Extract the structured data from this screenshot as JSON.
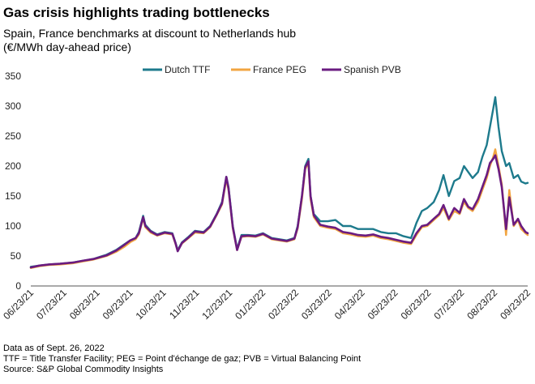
{
  "header": {
    "title": "Gas crisis highlights trading bottlenecks",
    "subtitle_line1": "Spain, France benchmarks at discount to Netherlands hub",
    "subtitle_line2": "(€/MWh day-ahead price)"
  },
  "footer": {
    "note1": "Data as of Sept. 26, 2022",
    "note2": "TTF = Title Transfer Facility; PEG = Point d'échange de gaz; PVB = Virtual Balancing Point",
    "note3": "Source: S&P Global Commodity Insights"
  },
  "chart_data": {
    "type": "line",
    "title": "Gas crisis highlights trading bottlenecks",
    "xlabel": "",
    "ylabel": "",
    "ylim": [
      0,
      350
    ],
    "yticks": [
      0,
      50,
      100,
      150,
      200,
      250,
      300,
      350
    ],
    "xlim": [
      "2021-06-23",
      "2022-09-26"
    ],
    "xtick_labels": [
      "06/23/21",
      "07/23/21",
      "08/23/21",
      "09/23/21",
      "10/23/21",
      "11/23/21",
      "12/23/21",
      "01/23/22",
      "02/23/22",
      "03/23/22",
      "04/23/22",
      "05/23/22",
      "06/23/22",
      "07/23/22",
      "08/23/22",
      "09/23/22"
    ],
    "grid": false,
    "legend_position": "top",
    "colors": {
      "Dutch TTF": "#1d7a8c",
      "France PEG": "#f2a541",
      "Spanish PVB": "#6a1b80"
    },
    "series": [
      {
        "name": "Dutch TTF",
        "points": [
          [
            "2021-06-23",
            32
          ],
          [
            "2021-07-01",
            34
          ],
          [
            "2021-07-10",
            36
          ],
          [
            "2021-07-20",
            37
          ],
          [
            "2021-08-01",
            39
          ],
          [
            "2021-08-10",
            42
          ],
          [
            "2021-08-20",
            45
          ],
          [
            "2021-09-01",
            52
          ],
          [
            "2021-09-10",
            60
          ],
          [
            "2021-09-18",
            70
          ],
          [
            "2021-09-23",
            76
          ],
          [
            "2021-09-28",
            80
          ],
          [
            "2021-10-01",
            90
          ],
          [
            "2021-10-05",
            117
          ],
          [
            "2021-10-07",
            102
          ],
          [
            "2021-10-12",
            92
          ],
          [
            "2021-10-18",
            86
          ],
          [
            "2021-10-25",
            90
          ],
          [
            "2021-11-01",
            88
          ],
          [
            "2021-11-04",
            72
          ],
          [
            "2021-11-06",
            60
          ],
          [
            "2021-11-10",
            73
          ],
          [
            "2021-11-16",
            82
          ],
          [
            "2021-11-22",
            92
          ],
          [
            "2021-11-30",
            90
          ],
          [
            "2021-12-06",
            100
          ],
          [
            "2021-12-12",
            120
          ],
          [
            "2021-12-17",
            140
          ],
          [
            "2021-12-21",
            182
          ],
          [
            "2021-12-23",
            165
          ],
          [
            "2021-12-27",
            100
          ],
          [
            "2021-12-31",
            62
          ],
          [
            "2022-01-04",
            85
          ],
          [
            "2022-01-10",
            85
          ],
          [
            "2022-01-17",
            84
          ],
          [
            "2022-01-24",
            88
          ],
          [
            "2022-02-01",
            80
          ],
          [
            "2022-02-08",
            78
          ],
          [
            "2022-02-15",
            76
          ],
          [
            "2022-02-22",
            80
          ],
          [
            "2022-02-25",
            100
          ],
          [
            "2022-03-01",
            150
          ],
          [
            "2022-03-04",
            200
          ],
          [
            "2022-03-07",
            212
          ],
          [
            "2022-03-09",
            150
          ],
          [
            "2022-03-12",
            120
          ],
          [
            "2022-03-18",
            108
          ],
          [
            "2022-03-25",
            108
          ],
          [
            "2022-04-01",
            110
          ],
          [
            "2022-04-08",
            100
          ],
          [
            "2022-04-15",
            100
          ],
          [
            "2022-04-22",
            95
          ],
          [
            "2022-04-29",
            95
          ],
          [
            "2022-05-06",
            95
          ],
          [
            "2022-05-13",
            90
          ],
          [
            "2022-05-20",
            88
          ],
          [
            "2022-05-27",
            88
          ],
          [
            "2022-06-03",
            83
          ],
          [
            "2022-06-10",
            80
          ],
          [
            "2022-06-15",
            105
          ],
          [
            "2022-06-20",
            125
          ],
          [
            "2022-06-25",
            130
          ],
          [
            "2022-07-01",
            140
          ],
          [
            "2022-07-06",
            160
          ],
          [
            "2022-07-10",
            185
          ],
          [
            "2022-07-15",
            150
          ],
          [
            "2022-07-20",
            175
          ],
          [
            "2022-07-25",
            180
          ],
          [
            "2022-07-29",
            200
          ],
          [
            "2022-08-02",
            190
          ],
          [
            "2022-08-06",
            180
          ],
          [
            "2022-08-11",
            190
          ],
          [
            "2022-08-15",
            215
          ],
          [
            "2022-08-19",
            235
          ],
          [
            "2022-08-22",
            265
          ],
          [
            "2022-08-25",
            295
          ],
          [
            "2022-08-27",
            315
          ],
          [
            "2022-08-30",
            265
          ],
          [
            "2022-09-02",
            225
          ],
          [
            "2022-09-06",
            200
          ],
          [
            "2022-09-09",
            205
          ],
          [
            "2022-09-13",
            180
          ],
          [
            "2022-09-17",
            185
          ],
          [
            "2022-09-20",
            174
          ],
          [
            "2022-09-24",
            171
          ],
          [
            "2022-09-26",
            172
          ]
        ]
      },
      {
        "name": "France PEG",
        "points": [
          [
            "2021-06-23",
            30
          ],
          [
            "2021-07-01",
            33
          ],
          [
            "2021-07-10",
            35
          ],
          [
            "2021-07-20",
            36
          ],
          [
            "2021-08-01",
            38
          ],
          [
            "2021-08-10",
            41
          ],
          [
            "2021-08-20",
            44
          ],
          [
            "2021-09-01",
            50
          ],
          [
            "2021-09-10",
            57
          ],
          [
            "2021-09-18",
            66
          ],
          [
            "2021-09-23",
            73
          ],
          [
            "2021-09-28",
            78
          ],
          [
            "2021-10-01",
            86
          ],
          [
            "2021-10-05",
            113
          ],
          [
            "2021-10-07",
            98
          ],
          [
            "2021-10-12",
            89
          ],
          [
            "2021-10-18",
            84
          ],
          [
            "2021-10-25",
            88
          ],
          [
            "2021-11-01",
            86
          ],
          [
            "2021-11-04",
            70
          ],
          [
            "2021-11-06",
            59
          ],
          [
            "2021-11-10",
            71
          ],
          [
            "2021-11-16",
            80
          ],
          [
            "2021-11-22",
            89
          ],
          [
            "2021-11-30",
            88
          ],
          [
            "2021-12-06",
            98
          ],
          [
            "2021-12-12",
            118
          ],
          [
            "2021-12-17",
            136
          ],
          [
            "2021-12-21",
            178
          ],
          [
            "2021-12-23",
            160
          ],
          [
            "2021-12-27",
            96
          ],
          [
            "2021-12-31",
            60
          ],
          [
            "2022-01-04",
            82
          ],
          [
            "2022-01-10",
            83
          ],
          [
            "2022-01-17",
            82
          ],
          [
            "2022-01-24",
            86
          ],
          [
            "2022-02-01",
            78
          ],
          [
            "2022-02-08",
            76
          ],
          [
            "2022-02-15",
            74
          ],
          [
            "2022-02-22",
            78
          ],
          [
            "2022-02-25",
            96
          ],
          [
            "2022-03-01",
            145
          ],
          [
            "2022-03-04",
            195
          ],
          [
            "2022-03-07",
            205
          ],
          [
            "2022-03-09",
            145
          ],
          [
            "2022-03-12",
            115
          ],
          [
            "2022-03-18",
            100
          ],
          [
            "2022-03-25",
            97
          ],
          [
            "2022-04-01",
            95
          ],
          [
            "2022-04-08",
            88
          ],
          [
            "2022-04-15",
            86
          ],
          [
            "2022-04-22",
            83
          ],
          [
            "2022-04-29",
            82
          ],
          [
            "2022-05-06",
            84
          ],
          [
            "2022-05-13",
            80
          ],
          [
            "2022-05-20",
            78
          ],
          [
            "2022-05-27",
            75
          ],
          [
            "2022-06-03",
            72
          ],
          [
            "2022-06-10",
            70
          ],
          [
            "2022-06-15",
            85
          ],
          [
            "2022-06-20",
            98
          ],
          [
            "2022-06-25",
            100
          ],
          [
            "2022-07-01",
            110
          ],
          [
            "2022-07-06",
            118
          ],
          [
            "2022-07-10",
            130
          ],
          [
            "2022-07-15",
            110
          ],
          [
            "2022-07-20",
            125
          ],
          [
            "2022-07-25",
            120
          ],
          [
            "2022-07-29",
            140
          ],
          [
            "2022-08-02",
            130
          ],
          [
            "2022-08-06",
            125
          ],
          [
            "2022-08-11",
            140
          ],
          [
            "2022-08-15",
            160
          ],
          [
            "2022-08-19",
            180
          ],
          [
            "2022-08-22",
            200
          ],
          [
            "2022-08-25",
            215
          ],
          [
            "2022-08-27",
            228
          ],
          [
            "2022-08-30",
            200
          ],
          [
            "2022-09-02",
            170
          ],
          [
            "2022-09-06",
            85
          ],
          [
            "2022-09-09",
            160
          ],
          [
            "2022-09-13",
            100
          ],
          [
            "2022-09-17",
            110
          ],
          [
            "2022-09-20",
            95
          ],
          [
            "2022-09-24",
            88
          ],
          [
            "2022-09-26",
            85
          ]
        ]
      },
      {
        "name": "Spanish PVB",
        "points": [
          [
            "2021-06-23",
            31
          ],
          [
            "2021-07-01",
            34
          ],
          [
            "2021-07-10",
            36
          ],
          [
            "2021-07-20",
            37
          ],
          [
            "2021-08-01",
            39
          ],
          [
            "2021-08-10",
            42
          ],
          [
            "2021-08-20",
            45
          ],
          [
            "2021-09-01",
            51
          ],
          [
            "2021-09-10",
            59
          ],
          [
            "2021-09-18",
            69
          ],
          [
            "2021-09-23",
            76
          ],
          [
            "2021-09-28",
            80
          ],
          [
            "2021-10-01",
            88
          ],
          [
            "2021-10-05",
            115
          ],
          [
            "2021-10-07",
            100
          ],
          [
            "2021-10-12",
            91
          ],
          [
            "2021-10-18",
            85
          ],
          [
            "2021-10-25",
            89
          ],
          [
            "2021-11-01",
            87
          ],
          [
            "2021-11-04",
            71
          ],
          [
            "2021-11-06",
            58
          ],
          [
            "2021-11-10",
            72
          ],
          [
            "2021-11-16",
            81
          ],
          [
            "2021-11-22",
            91
          ],
          [
            "2021-11-30",
            89
          ],
          [
            "2021-12-06",
            99
          ],
          [
            "2021-12-12",
            119
          ],
          [
            "2021-12-17",
            138
          ],
          [
            "2021-12-21",
            182
          ],
          [
            "2021-12-23",
            163
          ],
          [
            "2021-12-27",
            98
          ],
          [
            "2021-12-31",
            60
          ],
          [
            "2022-01-04",
            83
          ],
          [
            "2022-01-10",
            84
          ],
          [
            "2022-01-17",
            83
          ],
          [
            "2022-01-24",
            87
          ],
          [
            "2022-02-01",
            79
          ],
          [
            "2022-02-08",
            77
          ],
          [
            "2022-02-15",
            75
          ],
          [
            "2022-02-22",
            79
          ],
          [
            "2022-02-25",
            98
          ],
          [
            "2022-03-01",
            150
          ],
          [
            "2022-03-04",
            198
          ],
          [
            "2022-03-07",
            208
          ],
          [
            "2022-03-09",
            150
          ],
          [
            "2022-03-12",
            118
          ],
          [
            "2022-03-18",
            102
          ],
          [
            "2022-03-25",
            99
          ],
          [
            "2022-04-01",
            97
          ],
          [
            "2022-04-08",
            90
          ],
          [
            "2022-04-15",
            88
          ],
          [
            "2022-04-22",
            85
          ],
          [
            "2022-04-29",
            84
          ],
          [
            "2022-05-06",
            86
          ],
          [
            "2022-05-13",
            82
          ],
          [
            "2022-05-20",
            80
          ],
          [
            "2022-05-27",
            77
          ],
          [
            "2022-06-03",
            74
          ],
          [
            "2022-06-10",
            72
          ],
          [
            "2022-06-15",
            88
          ],
          [
            "2022-06-20",
            100
          ],
          [
            "2022-06-25",
            102
          ],
          [
            "2022-07-01",
            112
          ],
          [
            "2022-07-06",
            120
          ],
          [
            "2022-07-10",
            135
          ],
          [
            "2022-07-15",
            112
          ],
          [
            "2022-07-20",
            130
          ],
          [
            "2022-07-25",
            122
          ],
          [
            "2022-07-29",
            145
          ],
          [
            "2022-08-02",
            132
          ],
          [
            "2022-08-06",
            128
          ],
          [
            "2022-08-11",
            145
          ],
          [
            "2022-08-15",
            165
          ],
          [
            "2022-08-19",
            185
          ],
          [
            "2022-08-22",
            205
          ],
          [
            "2022-08-25",
            212
          ],
          [
            "2022-08-27",
            218
          ],
          [
            "2022-08-30",
            195
          ],
          [
            "2022-09-02",
            165
          ],
          [
            "2022-09-06",
            95
          ],
          [
            "2022-09-09",
            148
          ],
          [
            "2022-09-13",
            102
          ],
          [
            "2022-09-17",
            112
          ],
          [
            "2022-09-20",
            100
          ],
          [
            "2022-09-24",
            90
          ],
          [
            "2022-09-26",
            88
          ]
        ]
      }
    ]
  }
}
